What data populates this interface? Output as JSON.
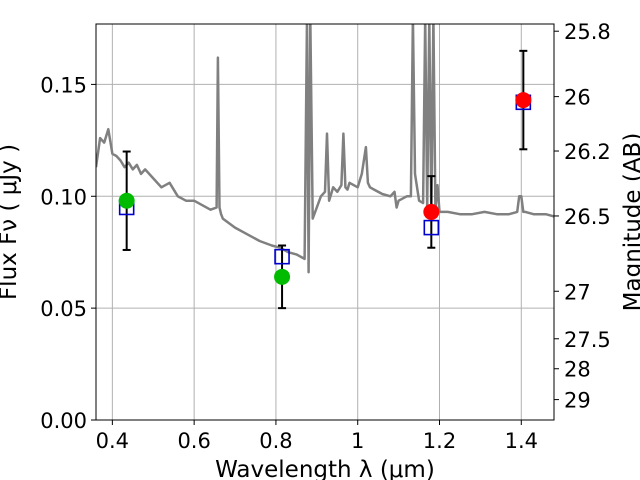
{
  "chart_data": {
    "type": "scatter",
    "xlabel": "Wavelength  λ (μm)",
    "ylabel": "Flux  Fν  ( μJy )",
    "y2label": "Magnitude (AB)",
    "xlim": [
      0.36,
      1.48
    ],
    "ylim": [
      0.0,
      0.177
    ],
    "grid": true,
    "x_ticks": [
      {
        "value": 0.4,
        "label": "0.4"
      },
      {
        "value": 0.6,
        "label": "0.6"
      },
      {
        "value": 0.8,
        "label": "0.8"
      },
      {
        "value": 1.0,
        "label": "1"
      },
      {
        "value": 1.2,
        "label": "1.2"
      },
      {
        "value": 1.4,
        "label": "1.4"
      }
    ],
    "y_ticks": [
      {
        "value": 0.0,
        "label": "0.00"
      },
      {
        "value": 0.05,
        "label": "0.05"
      },
      {
        "value": 0.1,
        "label": "0.10"
      },
      {
        "value": 0.15,
        "label": "0.15"
      }
    ],
    "y2_ticks": [
      {
        "mag": 25.8,
        "label": "25.8"
      },
      {
        "mag": 26.0,
        "label": "26"
      },
      {
        "mag": 26.2,
        "label": "26.2"
      },
      {
        "mag": 26.5,
        "label": "26.5"
      },
      {
        "mag": 27.0,
        "label": "27"
      },
      {
        "mag": 27.5,
        "label": "27.5"
      },
      {
        "mag": 28.0,
        "label": "28"
      },
      {
        "mag": 29.0,
        "label": "29"
      }
    ],
    "colors": {
      "spectrum": "#808080",
      "model_marker": "#0000cc",
      "green_marker": "#00bb00",
      "red_marker": "#ff0000",
      "errorbar": "#000000",
      "grid": "#b0b0b0"
    },
    "series": [
      {
        "type": "line",
        "x": [
          0.36,
          0.37,
          0.38,
          0.39,
          0.4,
          0.41,
          0.42,
          0.43,
          0.44,
          0.45,
          0.46,
          0.47,
          0.48,
          0.5,
          0.52,
          0.54,
          0.56,
          0.58,
          0.6,
          0.62,
          0.64,
          0.655,
          0.658,
          0.662,
          0.666,
          0.67,
          0.7,
          0.73,
          0.76,
          0.79,
          0.81,
          0.83,
          0.85,
          0.87,
          0.876,
          0.88,
          0.884,
          0.89,
          0.9,
          0.91,
          0.92,
          0.925,
          0.93,
          0.94,
          0.95,
          0.96,
          0.965,
          0.97,
          0.975,
          0.98,
          1.0,
          1.01,
          1.02,
          1.025,
          1.03,
          1.04,
          1.06,
          1.08,
          1.09,
          1.095,
          1.1,
          1.12,
          1.13,
          1.135,
          1.14,
          1.15,
          1.16,
          1.165,
          1.17,
          1.175,
          1.18,
          1.185,
          1.19,
          1.195,
          1.2,
          1.22,
          1.25,
          1.28,
          1.31,
          1.34,
          1.37,
          1.39,
          1.395,
          1.4,
          1.405,
          1.41,
          1.43,
          1.46,
          1.48
        ],
        "y": [
          0.113,
          0.126,
          0.124,
          0.13,
          0.119,
          0.118,
          0.116,
          0.113,
          0.115,
          0.112,
          0.114,
          0.11,
          0.112,
          0.108,
          0.104,
          0.106,
          0.1,
          0.098,
          0.098,
          0.096,
          0.094,
          0.095,
          0.162,
          0.095,
          0.092,
          0.09,
          0.086,
          0.083,
          0.08,
          0.078,
          0.077,
          0.075,
          0.074,
          0.072,
          0.18,
          0.066,
          0.18,
          0.09,
          0.095,
          0.1,
          0.102,
          0.128,
          0.098,
          0.104,
          0.102,
          0.105,
          0.128,
          0.104,
          0.103,
          0.106,
          0.104,
          0.11,
          0.122,
          0.106,
          0.104,
          0.103,
          0.101,
          0.1,
          0.102,
          0.095,
          0.098,
          0.1,
          0.1,
          0.18,
          0.11,
          0.098,
          0.097,
          0.18,
          0.094,
          0.18,
          0.093,
          0.18,
          0.094,
          0.105,
          0.093,
          0.093,
          0.092,
          0.092,
          0.093,
          0.092,
          0.092,
          0.093,
          0.1,
          0.1,
          0.093,
          0.093,
          0.092,
          0.092,
          0.091
        ]
      },
      {
        "type": "scatter",
        "marker": "square",
        "x": [
          0.435,
          0.815,
          1.18,
          1.405
        ],
        "y": [
          0.095,
          0.073,
          0.086,
          0.142
        ]
      },
      {
        "type": "scatter",
        "marker": "circle",
        "x": [
          0.435,
          0.815,
          1.18,
          1.405
        ],
        "y": [
          0.098,
          0.064,
          0.093,
          0.143
        ],
        "yerr_low": [
          0.076,
          0.05,
          0.077,
          0.121
        ],
        "yerr_high": [
          0.12,
          0.078,
          0.109,
          0.165
        ],
        "colors": [
          "#00bb00",
          "#00bb00",
          "#ff0000",
          "#ff0000"
        ]
      }
    ]
  }
}
